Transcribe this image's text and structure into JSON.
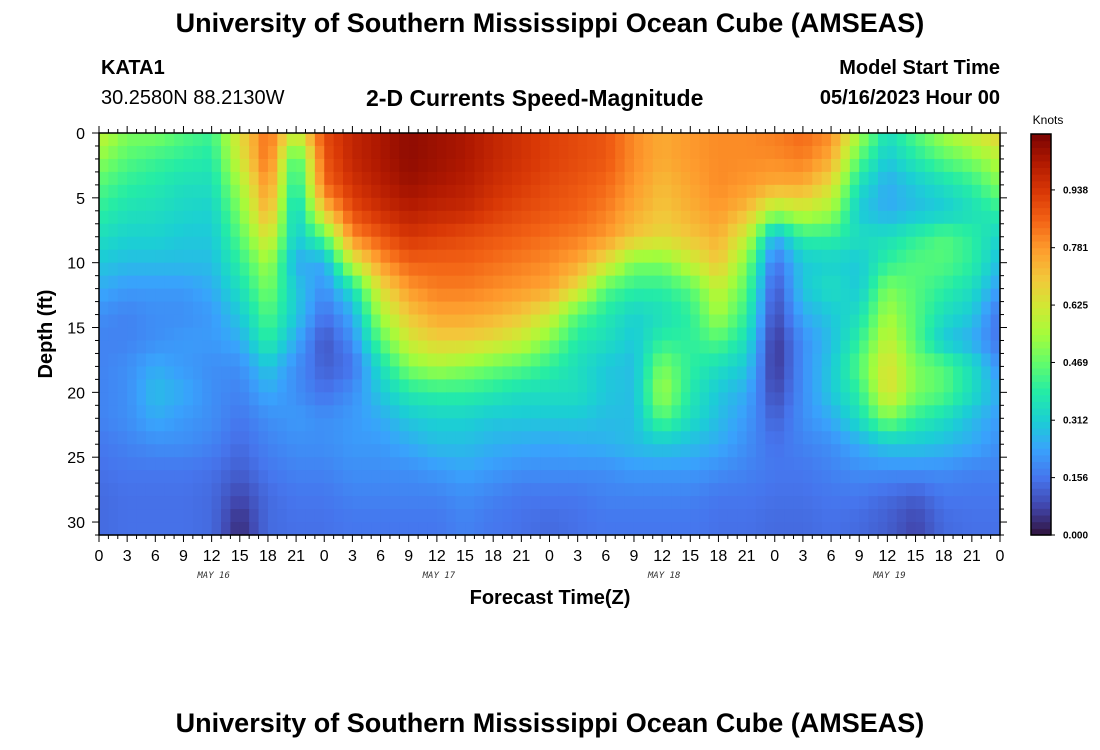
{
  "header": {
    "title": "University of Southern Mississippi Ocean Cube (AMSEAS)",
    "station_id": "KATA1",
    "coordinates": "30.2580N  88.2130W",
    "subtitle": "2-D Currents Speed-Magnitude",
    "model_start_label": "Model Start Time",
    "model_start_value": "05/16/2023 Hour 00"
  },
  "footer": {
    "title": "University of Southern Mississippi Ocean Cube (AMSEAS)"
  },
  "chart_data": {
    "type": "heatmap",
    "title": "2-D Currents Speed-Magnitude",
    "xlabel": "Forecast Time(Z)",
    "ylabel": "Depth (ft)",
    "x_tick_labels": [
      "0",
      "3",
      "6",
      "9",
      "12",
      "15",
      "18",
      "21",
      "0",
      "3",
      "6",
      "9",
      "12",
      "15",
      "18",
      "21",
      "0",
      "3",
      "6",
      "9",
      "12",
      "15",
      "18",
      "21",
      "0",
      "3",
      "6",
      "9",
      "12",
      "15",
      "18",
      "21",
      "0"
    ],
    "x_range_hours": [
      0,
      96
    ],
    "day_labels": [
      {
        "label": "MAY 16",
        "hour": 12
      },
      {
        "label": "MAY 17",
        "hour": 36
      },
      {
        "label": "MAY 18",
        "hour": 60
      },
      {
        "label": "MAY 19",
        "hour": 84
      }
    ],
    "y_tick_labels": [
      "0",
      "5",
      "10",
      "15",
      "20",
      "25",
      "30"
    ],
    "y_range_ft": [
      0,
      31
    ],
    "y_inverted": true,
    "colorbar": {
      "title": "Knots",
      "tick_labels": [
        "0.000",
        "0.156",
        "0.312",
        "0.469",
        "0.625",
        "0.781",
        "0.938"
      ],
      "range": [
        0,
        1.09
      ],
      "colormap": [
        "#30123b",
        "#4145ab",
        "#4675ed",
        "#39a2fc",
        "#1bcfd4",
        "#24eca6",
        "#61fc6c",
        "#a4fc3b",
        "#d1e834",
        "#f3c63a",
        "#fe9b2d",
        "#f36315",
        "#d93806",
        "#b11901",
        "#7a0402"
      ]
    },
    "x_hours": [
      0,
      3,
      6,
      9,
      12,
      15,
      18,
      21,
      24,
      27,
      30,
      33,
      36,
      39,
      42,
      45,
      48,
      51,
      54,
      57,
      60,
      63,
      66,
      69,
      72,
      75,
      78,
      81,
      84,
      87,
      90,
      93,
      96
    ],
    "depths_ft": [
      0,
      2,
      4,
      6,
      8,
      10,
      12,
      14,
      16,
      18,
      20,
      22,
      24,
      26,
      28,
      30,
      31
    ],
    "values": [
      [
        0.6,
        0.5,
        0.5,
        0.45,
        0.42,
        0.65,
        0.85,
        0.6,
        0.9,
        0.98,
        1.02,
        1.06,
        1.04,
        1.02,
        0.98,
        0.95,
        0.92,
        0.9,
        0.88,
        0.8,
        0.75,
        0.78,
        0.8,
        0.8,
        0.82,
        0.85,
        0.8,
        0.55,
        0.35,
        0.45,
        0.55,
        0.62,
        0.68
      ],
      [
        0.52,
        0.45,
        0.42,
        0.4,
        0.38,
        0.62,
        0.85,
        0.4,
        0.88,
        0.98,
        1.02,
        1.06,
        1.04,
        1.02,
        0.98,
        0.95,
        0.92,
        0.9,
        0.88,
        0.8,
        0.75,
        0.78,
        0.8,
        0.8,
        0.8,
        0.82,
        0.75,
        0.45,
        0.3,
        0.38,
        0.45,
        0.5,
        0.58
      ],
      [
        0.45,
        0.4,
        0.38,
        0.35,
        0.35,
        0.55,
        0.8,
        0.35,
        0.85,
        0.95,
        1.0,
        1.04,
        1.02,
        1.0,
        0.96,
        0.93,
        0.9,
        0.88,
        0.85,
        0.78,
        0.72,
        0.76,
        0.8,
        0.78,
        0.75,
        0.75,
        0.65,
        0.35,
        0.25,
        0.3,
        0.35,
        0.4,
        0.5
      ],
      [
        0.4,
        0.36,
        0.35,
        0.33,
        0.32,
        0.5,
        0.75,
        0.3,
        0.7,
        0.9,
        0.96,
        1.0,
        0.98,
        0.97,
        0.93,
        0.9,
        0.88,
        0.86,
        0.82,
        0.75,
        0.7,
        0.74,
        0.78,
        0.72,
        0.55,
        0.6,
        0.55,
        0.3,
        0.25,
        0.28,
        0.3,
        0.35,
        0.4
      ],
      [
        0.35,
        0.32,
        0.32,
        0.3,
        0.3,
        0.45,
        0.65,
        0.3,
        0.45,
        0.8,
        0.88,
        0.94,
        0.92,
        0.9,
        0.88,
        0.86,
        0.84,
        0.82,
        0.78,
        0.7,
        0.66,
        0.7,
        0.74,
        0.6,
        0.25,
        0.4,
        0.4,
        0.35,
        0.35,
        0.4,
        0.45,
        0.4,
        0.32
      ],
      [
        0.3,
        0.28,
        0.28,
        0.28,
        0.28,
        0.4,
        0.55,
        0.25,
        0.25,
        0.6,
        0.78,
        0.86,
        0.86,
        0.86,
        0.84,
        0.82,
        0.8,
        0.76,
        0.65,
        0.5,
        0.5,
        0.6,
        0.7,
        0.5,
        0.15,
        0.3,
        0.32,
        0.3,
        0.4,
        0.45,
        0.45,
        0.4,
        0.28
      ],
      [
        0.25,
        0.22,
        0.22,
        0.22,
        0.25,
        0.35,
        0.5,
        0.3,
        0.2,
        0.35,
        0.65,
        0.78,
        0.82,
        0.82,
        0.8,
        0.78,
        0.76,
        0.65,
        0.45,
        0.4,
        0.4,
        0.45,
        0.6,
        0.45,
        0.1,
        0.3,
        0.35,
        0.3,
        0.5,
        0.45,
        0.4,
        0.35,
        0.22
      ],
      [
        0.2,
        0.18,
        0.2,
        0.2,
        0.22,
        0.3,
        0.45,
        0.3,
        0.15,
        0.25,
        0.55,
        0.7,
        0.76,
        0.76,
        0.74,
        0.7,
        0.62,
        0.45,
        0.38,
        0.32,
        0.35,
        0.4,
        0.55,
        0.4,
        0.08,
        0.25,
        0.3,
        0.35,
        0.55,
        0.45,
        0.35,
        0.3,
        0.15
      ],
      [
        0.18,
        0.18,
        0.2,
        0.22,
        0.22,
        0.25,
        0.4,
        0.25,
        0.1,
        0.2,
        0.45,
        0.62,
        0.68,
        0.68,
        0.65,
        0.6,
        0.5,
        0.38,
        0.35,
        0.3,
        0.4,
        0.4,
        0.45,
        0.35,
        0.05,
        0.2,
        0.28,
        0.4,
        0.6,
        0.45,
        0.3,
        0.25,
        0.15
      ],
      [
        0.18,
        0.2,
        0.25,
        0.22,
        0.2,
        0.2,
        0.3,
        0.2,
        0.12,
        0.15,
        0.35,
        0.5,
        0.55,
        0.52,
        0.48,
        0.45,
        0.4,
        0.35,
        0.3,
        0.28,
        0.5,
        0.4,
        0.35,
        0.3,
        0.05,
        0.2,
        0.3,
        0.45,
        0.65,
        0.5,
        0.45,
        0.35,
        0.2
      ],
      [
        0.18,
        0.2,
        0.28,
        0.25,
        0.2,
        0.18,
        0.25,
        0.2,
        0.15,
        0.2,
        0.3,
        0.38,
        0.4,
        0.4,
        0.38,
        0.35,
        0.35,
        0.35,
        0.3,
        0.28,
        0.55,
        0.38,
        0.3,
        0.25,
        0.08,
        0.2,
        0.3,
        0.4,
        0.65,
        0.5,
        0.45,
        0.35,
        0.25
      ],
      [
        0.18,
        0.2,
        0.25,
        0.22,
        0.2,
        0.16,
        0.2,
        0.22,
        0.2,
        0.22,
        0.25,
        0.3,
        0.32,
        0.32,
        0.3,
        0.3,
        0.3,
        0.3,
        0.28,
        0.28,
        0.45,
        0.35,
        0.28,
        0.22,
        0.12,
        0.2,
        0.25,
        0.35,
        0.5,
        0.4,
        0.35,
        0.28,
        0.22
      ],
      [
        0.16,
        0.18,
        0.2,
        0.2,
        0.18,
        0.14,
        0.18,
        0.2,
        0.2,
        0.22,
        0.22,
        0.25,
        0.28,
        0.28,
        0.26,
        0.25,
        0.24,
        0.25,
        0.26,
        0.28,
        0.3,
        0.28,
        0.25,
        0.2,
        0.15,
        0.18,
        0.2,
        0.25,
        0.3,
        0.3,
        0.28,
        0.25,
        0.2
      ],
      [
        0.15,
        0.16,
        0.16,
        0.16,
        0.15,
        0.12,
        0.16,
        0.18,
        0.18,
        0.2,
        0.2,
        0.2,
        0.22,
        0.24,
        0.22,
        0.2,
        0.2,
        0.2,
        0.2,
        0.22,
        0.22,
        0.22,
        0.2,
        0.18,
        0.16,
        0.16,
        0.18,
        0.2,
        0.2,
        0.2,
        0.2,
        0.18,
        0.18
      ],
      [
        0.14,
        0.15,
        0.15,
        0.15,
        0.14,
        0.08,
        0.14,
        0.16,
        0.16,
        0.18,
        0.18,
        0.18,
        0.18,
        0.2,
        0.18,
        0.16,
        0.16,
        0.16,
        0.18,
        0.18,
        0.18,
        0.18,
        0.16,
        0.16,
        0.15,
        0.15,
        0.16,
        0.16,
        0.14,
        0.12,
        0.16,
        0.16,
        0.16
      ],
      [
        0.14,
        0.15,
        0.15,
        0.15,
        0.14,
        0.04,
        0.14,
        0.15,
        0.15,
        0.16,
        0.16,
        0.16,
        0.16,
        0.18,
        0.16,
        0.15,
        0.14,
        0.15,
        0.16,
        0.16,
        0.16,
        0.16,
        0.15,
        0.15,
        0.14,
        0.14,
        0.15,
        0.14,
        0.12,
        0.08,
        0.14,
        0.15,
        0.15
      ],
      [
        0.14,
        0.15,
        0.15,
        0.15,
        0.14,
        0.04,
        0.14,
        0.15,
        0.15,
        0.16,
        0.16,
        0.16,
        0.16,
        0.18,
        0.16,
        0.15,
        0.14,
        0.15,
        0.16,
        0.16,
        0.16,
        0.16,
        0.15,
        0.15,
        0.14,
        0.14,
        0.15,
        0.14,
        0.12,
        0.08,
        0.14,
        0.15,
        0.15
      ]
    ]
  }
}
